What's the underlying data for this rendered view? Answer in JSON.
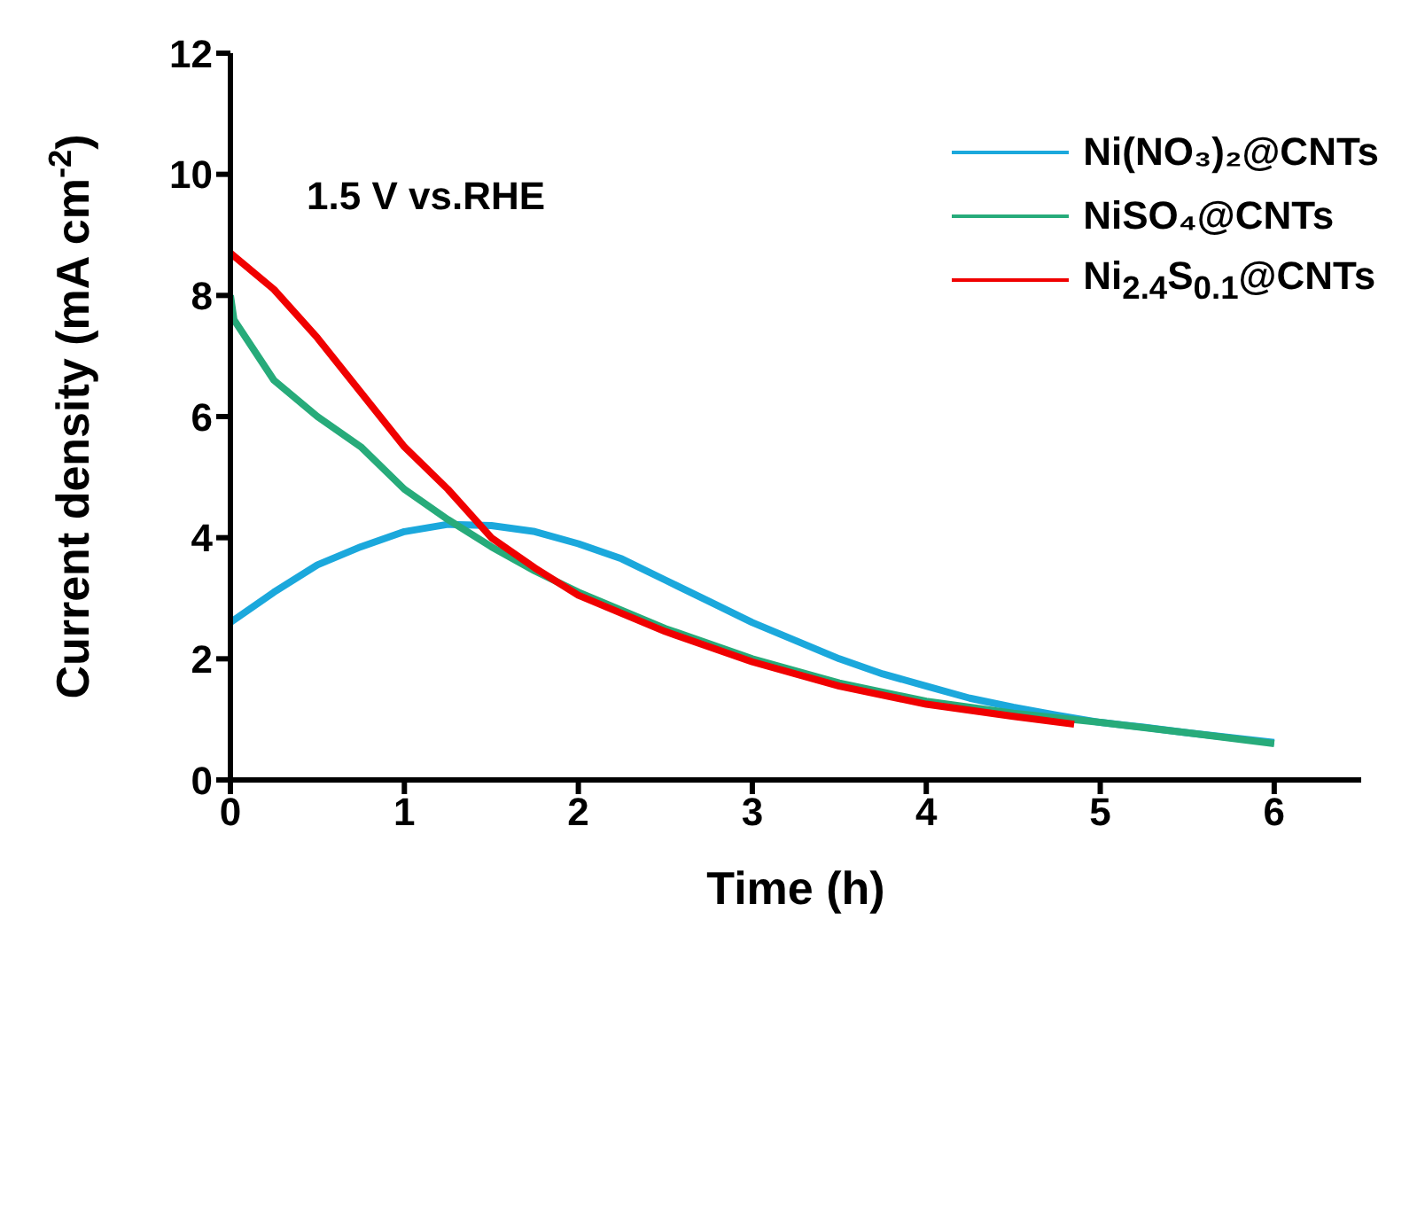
{
  "chart_data": {
    "type": "line",
    "xlabel": "Time (h)",
    "ylabel": "Current density (mA cm$^{-2}$)",
    "annotations": [
      "1.5 V vs.RHE"
    ],
    "xlim": [
      0,
      6.5
    ],
    "xticks": [
      0,
      1,
      2,
      3,
      4,
      5,
      6
    ],
    "ylim": [
      0,
      12
    ],
    "yticks": [
      0,
      2,
      4,
      6,
      8,
      10,
      12
    ],
    "grid": false,
    "legend": "top right",
    "marker": "none",
    "line_style": "solid",
    "series": [
      {
        "name": "Ni(NO₃)₂@CNTs",
        "color": "#1ba8dc",
        "x": [
          0,
          0.25,
          0.5,
          0.75,
          1,
          1.25,
          1.5,
          1.75,
          2,
          2.25,
          2.5,
          2.75,
          3,
          3.25,
          3.5,
          3.75,
          4,
          4.25,
          4.5,
          4.75,
          5,
          5.25,
          5.5,
          5.75,
          6
        ],
        "values": [
          2.6,
          3.1,
          3.55,
          3.85,
          4.1,
          4.22,
          4.2,
          4.1,
          3.9,
          3.65,
          3.3,
          2.95,
          2.6,
          2.3,
          2.0,
          1.75,
          1.55,
          1.35,
          1.2,
          1.07,
          0.95,
          0.87,
          0.78,
          0.7,
          0.62
        ]
      },
      {
        "name": "NiSO₄@CNTs",
        "color": "#27ab7a",
        "x": [
          0,
          0.02,
          0.25,
          0.5,
          0.75,
          1,
          1.25,
          1.5,
          1.75,
          2,
          2.25,
          2.5,
          3,
          3.5,
          4,
          4.5,
          5,
          5.5,
          6
        ],
        "values": [
          8.0,
          7.6,
          6.6,
          6.0,
          5.5,
          4.8,
          4.3,
          3.85,
          3.45,
          3.1,
          2.8,
          2.5,
          2.0,
          1.6,
          1.3,
          1.1,
          0.95,
          0.78,
          0.6
        ]
      },
      {
        "name": "Ni$_{2.4}$S$_{0.1}$@CNTs",
        "color": "#f00000",
        "x": [
          0,
          0.25,
          0.5,
          0.75,
          1,
          1.25,
          1.5,
          1.75,
          2,
          2.25,
          2.5,
          3,
          3.5,
          4,
          4.5,
          4.85
        ],
        "values": [
          8.7,
          8.1,
          7.3,
          6.4,
          5.5,
          4.8,
          4.0,
          3.5,
          3.05,
          2.75,
          2.45,
          1.95,
          1.55,
          1.25,
          1.05,
          0.92
        ]
      }
    ]
  }
}
